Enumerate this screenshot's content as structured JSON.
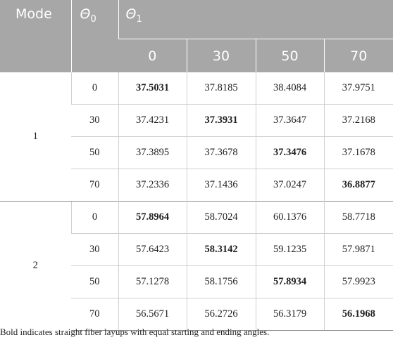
{
  "header": {
    "mode_label": "Mode",
    "theta0": {
      "symbol": "Θ",
      "subscript": "0"
    },
    "theta1": {
      "symbol": "Θ",
      "subscript": "1"
    },
    "theta1_values": [
      "0",
      "30",
      "50",
      "70"
    ]
  },
  "modes": [
    {
      "mode": "1",
      "rows": [
        {
          "theta0": "0",
          "values": [
            "37.5031",
            "37.8185",
            "38.4084",
            "37.9751"
          ],
          "bold_index": 0
        },
        {
          "theta0": "30",
          "values": [
            "37.4231",
            "37.3931",
            "37.3647",
            "37.2168"
          ],
          "bold_index": 1
        },
        {
          "theta0": "50",
          "values": [
            "37.3895",
            "37.3678",
            "37.3476",
            "37.1678"
          ],
          "bold_index": 2
        },
        {
          "theta0": "70",
          "values": [
            "37.2336",
            "37.1436",
            "37.0247",
            "36.8877"
          ],
          "bold_index": 3
        }
      ]
    },
    {
      "mode": "2",
      "rows": [
        {
          "theta0": "0",
          "values": [
            "57.8964",
            "58.7024",
            "60.1376",
            "58.7718"
          ],
          "bold_index": 0
        },
        {
          "theta0": "30",
          "values": [
            "57.6423",
            "58.3142",
            "59.1235",
            "57.9871"
          ],
          "bold_index": 1
        },
        {
          "theta0": "50",
          "values": [
            "57.1278",
            "58.1756",
            "57.8934",
            "57.9923"
          ],
          "bold_index": 2
        },
        {
          "theta0": "70",
          "values": [
            "56.5671",
            "56.2726",
            "56.3179",
            "56.1968"
          ],
          "bold_index": 3
        }
      ]
    }
  ],
  "footnote": "Bold indicates straight fiber layups with equal starting and ending angles."
}
